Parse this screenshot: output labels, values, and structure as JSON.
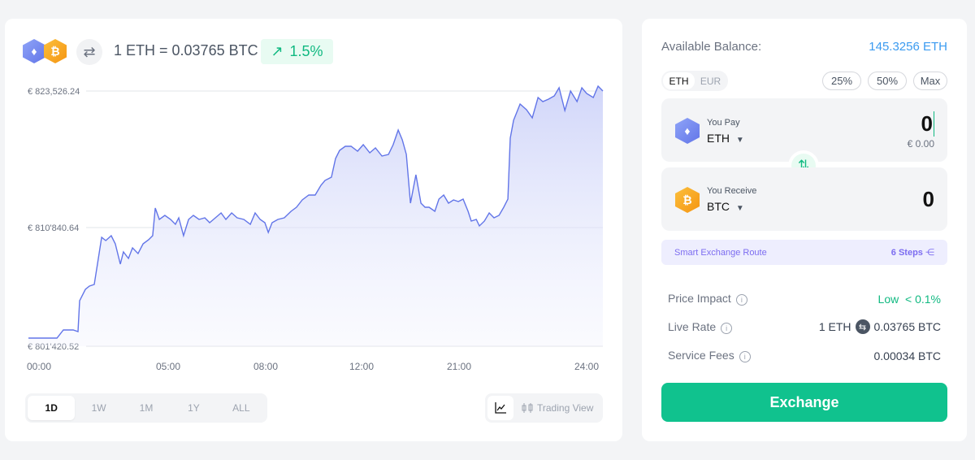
{
  "header": {
    "rate_text": "1 ETH = 0.03765 BTC",
    "change": "1.5%",
    "eth_symbol": "♦",
    "btc_symbol": "₿"
  },
  "chart_data": {
    "type": "area",
    "xlabel": "",
    "ylabel": "",
    "x_ticks": [
      "00:00",
      "05:00",
      "08:00",
      "12:00",
      "21:00",
      "24:00"
    ],
    "y_ticks": [
      {
        "value": 823526.24,
        "label": "€ 823,526.24"
      },
      {
        "value": 810840.64,
        "label": "€ 810'840.64"
      },
      {
        "value": 801420.52,
        "label": "€ 801'420.52"
      }
    ],
    "ylim": [
      801420.52,
      823526.24
    ],
    "xlim": [
      0,
      24
    ],
    "grid": true,
    "color": "#6275e8",
    "points": [
      [
        0,
        802124
      ],
      [
        1.19,
        802124
      ],
      [
        1.46,
        802828
      ],
      [
        1.87,
        802828
      ],
      [
        2.07,
        802688
      ],
      [
        2.14,
        805363
      ],
      [
        2.38,
        806348
      ],
      [
        2.55,
        806630
      ],
      [
        2.75,
        806771
      ],
      [
        2.89,
        808601
      ],
      [
        3.06,
        810854
      ],
      [
        3.23,
        810572
      ],
      [
        3.46,
        810995
      ],
      [
        3.63,
        810291
      ],
      [
        3.84,
        808531
      ],
      [
        3.97,
        809587
      ],
      [
        4.18,
        809024
      ],
      [
        4.35,
        809939
      ],
      [
        4.58,
        809446
      ],
      [
        4.79,
        810291
      ],
      [
        5.02,
        810643
      ],
      [
        5.19,
        810995
      ],
      [
        5.3,
        813388
      ],
      [
        5.47,
        812403
      ],
      [
        5.7,
        812755
      ],
      [
        5.94,
        812403
      ],
      [
        6.14,
        811980
      ],
      [
        6.28,
        812544
      ],
      [
        6.48,
        810995
      ],
      [
        6.69,
        812403
      ],
      [
        6.89,
        812755
      ],
      [
        7.13,
        812403
      ],
      [
        7.37,
        812544
      ],
      [
        7.57,
        812121
      ],
      [
        7.81,
        812544
      ],
      [
        8.05,
        812966
      ],
      [
        8.25,
        812403
      ],
      [
        8.49,
        812966
      ],
      [
        8.72,
        812544
      ],
      [
        9.0,
        812403
      ],
      [
        9.27,
        811980
      ],
      [
        9.47,
        812966
      ],
      [
        9.68,
        812403
      ],
      [
        9.88,
        812121
      ],
      [
        10.02,
        811276
      ],
      [
        10.18,
        812121
      ],
      [
        10.42,
        812403
      ],
      [
        10.69,
        812544
      ],
      [
        10.97,
        813107
      ],
      [
        11.2,
        813459
      ],
      [
        11.44,
        814092
      ],
      [
        11.71,
        814515
      ],
      [
        11.98,
        814515
      ],
      [
        12.22,
        815360
      ],
      [
        12.39,
        815782
      ],
      [
        12.66,
        816064
      ],
      [
        12.83,
        817683
      ],
      [
        13.0,
        818387
      ],
      [
        13.24,
        818739
      ],
      [
        13.48,
        818739
      ],
      [
        13.75,
        818316
      ],
      [
        13.99,
        818880
      ],
      [
        14.26,
        818176
      ],
      [
        14.5,
        818598
      ],
      [
        14.77,
        817894
      ],
      [
        15.04,
        818035
      ],
      [
        15.24,
        818880
      ],
      [
        15.45,
        820147
      ],
      [
        15.62,
        819302
      ],
      [
        15.79,
        818035
      ],
      [
        15.96,
        813811
      ],
      [
        16.19,
        816275
      ],
      [
        16.4,
        813811
      ],
      [
        16.57,
        813459
      ],
      [
        16.74,
        813459
      ],
      [
        16.98,
        813107
      ],
      [
        17.15,
        814163
      ],
      [
        17.35,
        814515
      ],
      [
        17.55,
        813811
      ],
      [
        17.76,
        814092
      ],
      [
        17.96,
        813952
      ],
      [
        18.16,
        814163
      ],
      [
        18.37,
        813107
      ],
      [
        18.5,
        812262
      ],
      [
        18.71,
        812403
      ],
      [
        18.84,
        811840
      ],
      [
        19.05,
        812262
      ],
      [
        19.25,
        812966
      ],
      [
        19.45,
        812544
      ],
      [
        19.66,
        812755
      ],
      [
        19.86,
        813459
      ],
      [
        20.03,
        814163
      ],
      [
        20.13,
        819443
      ],
      [
        20.27,
        820992
      ],
      [
        20.54,
        822400
      ],
      [
        20.81,
        821907
      ],
      [
        21.05,
        821203
      ],
      [
        21.29,
        822963
      ],
      [
        21.49,
        822611
      ],
      [
        21.73,
        822822
      ],
      [
        21.97,
        823104
      ],
      [
        22.17,
        823808
      ],
      [
        22.41,
        821836
      ],
      [
        22.65,
        823526
      ],
      [
        22.92,
        822611
      ],
      [
        23.12,
        823808
      ],
      [
        23.32,
        823315
      ],
      [
        23.6,
        822963
      ],
      [
        23.8,
        823948
      ],
      [
        24,
        823526
      ]
    ]
  },
  "ranges": [
    "1D",
    "1W",
    "1M",
    "1Y",
    "ALL"
  ],
  "trading_view": "Trading View",
  "balance": {
    "label": "Available Balance:",
    "value": "145.3256 ETH"
  },
  "currency_toggle": [
    "ETH",
    "EUR"
  ],
  "quick": [
    "25%",
    "50%",
    "Max"
  ],
  "pay": {
    "label": "You Pay",
    "coin": "ETH",
    "amount": "0",
    "fiat": "€ 0.00"
  },
  "receive": {
    "label": "You Receive",
    "coin": "BTC",
    "amount": "0"
  },
  "route": {
    "label": "Smart Exchange Route",
    "steps": "6 Steps"
  },
  "details": {
    "impact_label": "Price Impact",
    "impact_level": "Low",
    "impact_value": "< 0.1%",
    "rate_label": "Live Rate",
    "rate_from": "1 ETH",
    "rate_to": "0.03765 BTC",
    "fees_label": "Service Fees",
    "fees_value": "0.00034 BTC"
  },
  "exchange_label": "Exchange"
}
